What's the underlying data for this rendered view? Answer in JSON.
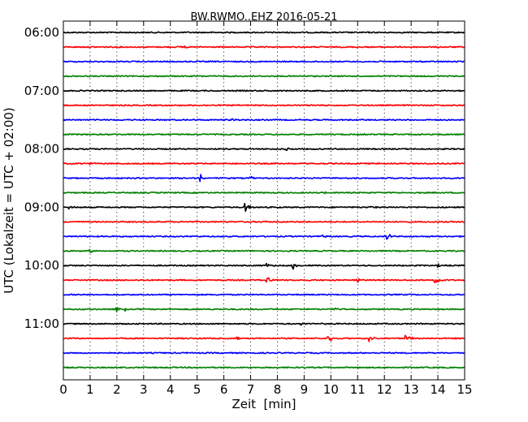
{
  "chart_data": {
    "type": "line",
    "title": "BW.RWMO..EHZ 2016-05-21",
    "xlabel": "Zeit  [min]",
    "ylabel": "UTC (Lokalzeit = UTC + 02:00)",
    "xlim": [
      0,
      15
    ],
    "x_ticks": [
      "0",
      "1",
      "2",
      "3",
      "4",
      "5",
      "6",
      "7",
      "8",
      "9",
      "10",
      "11",
      "12",
      "13",
      "14",
      "15"
    ],
    "y_tick_labels": [
      "06:00",
      "07:00",
      "08:00",
      "09:00",
      "10:00",
      "11:00"
    ],
    "grid": "vertical dotted",
    "trace_colors": [
      "#000000",
      "#ff0000",
      "#0000ff",
      "#008000"
    ],
    "trace_interval_minutes": 15,
    "first_trace_start": "06:00",
    "traces": [
      {
        "start": "06:00",
        "events": []
      },
      {
        "start": "06:15",
        "events": [
          {
            "t": 4.4,
            "amp": 3
          }
        ]
      },
      {
        "start": "06:30",
        "events": []
      },
      {
        "start": "06:45",
        "events": []
      },
      {
        "start": "07:00",
        "events": []
      },
      {
        "start": "07:15",
        "events": []
      },
      {
        "start": "07:30",
        "events": [
          {
            "t": 6.3,
            "amp": 2
          }
        ]
      },
      {
        "start": "07:45",
        "events": [
          {
            "t": 13.3,
            "amp": 2
          }
        ]
      },
      {
        "start": "08:00",
        "events": [
          {
            "t": 8.3,
            "amp": 2
          }
        ]
      },
      {
        "start": "08:15",
        "events": [
          {
            "t": 1.0,
            "amp": 2
          }
        ]
      },
      {
        "start": "08:30",
        "events": [
          {
            "t": 5.1,
            "amp": 6
          },
          {
            "t": 7.0,
            "amp": 2
          }
        ]
      },
      {
        "start": "08:45",
        "events": [
          {
            "t": 9.8,
            "amp": 2
          }
        ]
      },
      {
        "start": "09:00",
        "events": [
          {
            "t": 0.2,
            "amp": 2
          },
          {
            "t": 6.8,
            "amp": 7
          },
          {
            "t": 11.5,
            "amp": 2
          }
        ]
      },
      {
        "start": "09:15",
        "events": [
          {
            "t": 7.5,
            "amp": 2
          }
        ]
      },
      {
        "start": "09:30",
        "events": [
          {
            "t": 9.7,
            "amp": 2
          },
          {
            "t": 12.1,
            "amp": 5
          }
        ]
      },
      {
        "start": "09:45",
        "events": [
          {
            "t": 1.0,
            "amp": 2
          }
        ]
      },
      {
        "start": "10:00",
        "events": [
          {
            "t": 7.6,
            "amp": 3
          },
          {
            "t": 8.6,
            "amp": 7
          },
          {
            "t": 14.0,
            "amp": 3
          }
        ]
      },
      {
        "start": "10:15",
        "events": [
          {
            "t": 7.6,
            "amp": 5
          },
          {
            "t": 11.0,
            "amp": 3
          },
          {
            "t": 13.9,
            "amp": 7
          }
        ]
      },
      {
        "start": "10:30",
        "events": []
      },
      {
        "start": "10:45",
        "events": [
          {
            "t": 2.0,
            "amp": 4
          },
          {
            "t": 2.3,
            "amp": 2
          },
          {
            "t": 10.1,
            "amp": 2
          }
        ]
      },
      {
        "start": "11:00",
        "events": [
          {
            "t": 8.9,
            "amp": 2
          }
        ]
      },
      {
        "start": "11:15",
        "events": [
          {
            "t": 6.5,
            "amp": 3
          },
          {
            "t": 9.9,
            "amp": 6
          },
          {
            "t": 11.4,
            "amp": 5
          },
          {
            "t": 12.8,
            "amp": 7
          }
        ]
      },
      {
        "start": "11:30",
        "events": []
      },
      {
        "start": "11:45",
        "events": []
      }
    ]
  }
}
